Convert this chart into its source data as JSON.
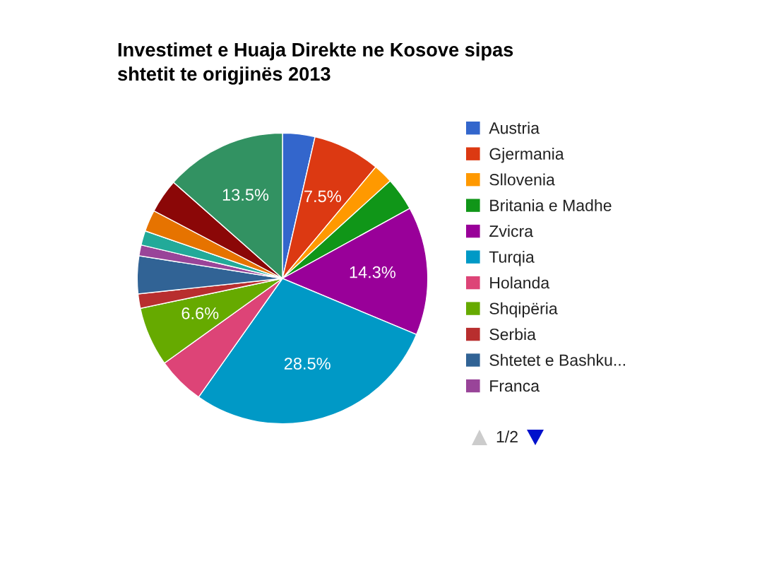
{
  "chart_data": {
    "type": "pie",
    "title": "Investimet e Huaja Direkte ne Kosove sipas\nshtetit te origjinës 2013",
    "categories": [
      "Austria",
      "Gjermania",
      "Sllovenia",
      "Britania e Madhe",
      "Zvicra",
      "Turqia",
      "Holanda",
      "Shqipëria",
      "Serbia",
      "Shtetet e Bashku...",
      "Franca",
      null,
      null,
      null,
      null
    ],
    "values": [
      3.6,
      7.5,
      2.2,
      3.7,
      14.3,
      28.5,
      5.3,
      6.6,
      1.6,
      4.2,
      1.2,
      1.6,
      2.4,
      3.8,
      13.5
    ],
    "colors": [
      "#3366cc",
      "#dc3912",
      "#ff9900",
      "#109618",
      "#990099",
      "#0099c6",
      "#dd4477",
      "#66aa00",
      "#b82e2e",
      "#316395",
      "#994499",
      "#22aa99",
      "#e67300",
      "#8b0707",
      "#329262"
    ],
    "value_labels": [
      null,
      "7.5%",
      null,
      null,
      "14.3%",
      "28.5%",
      null,
      "6.6%",
      null,
      null,
      null,
      null,
      null,
      null,
      "13.5%"
    ],
    "legend": "right",
    "annotations": [
      "1/2"
    ]
  }
}
